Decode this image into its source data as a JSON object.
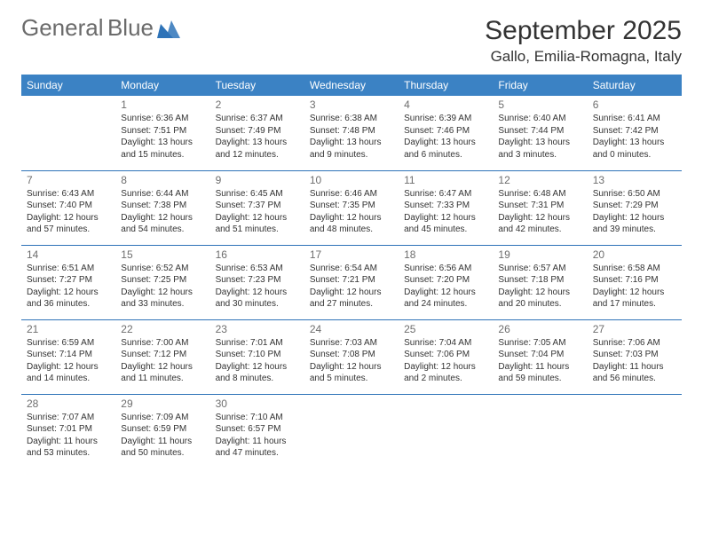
{
  "brand": {
    "name_top": "General",
    "name_bottom": "Blue",
    "logo_fill": "#2e73b8"
  },
  "header": {
    "month_title": "September 2025",
    "location": "Gallo, Emilia-Romagna, Italy"
  },
  "style": {
    "header_bg": "#3b82c4",
    "header_text": "#ffffff",
    "cell_border": "#2e73b8",
    "daynum_color": "#6e6e6e",
    "body_text": "#333333",
    "title_fontsize_pt": 30,
    "location_fontsize_pt": 17,
    "dayhead_fontsize_pt": 12,
    "cell_fontsize_pt": 10
  },
  "day_headers": [
    "Sunday",
    "Monday",
    "Tuesday",
    "Wednesday",
    "Thursday",
    "Friday",
    "Saturday"
  ],
  "weeks": [
    [
      null,
      {
        "n": "1",
        "sunrise": "6:36 AM",
        "sunset": "7:51 PM",
        "daylight": "13 hours and 15 minutes."
      },
      {
        "n": "2",
        "sunrise": "6:37 AM",
        "sunset": "7:49 PM",
        "daylight": "13 hours and 12 minutes."
      },
      {
        "n": "3",
        "sunrise": "6:38 AM",
        "sunset": "7:48 PM",
        "daylight": "13 hours and 9 minutes."
      },
      {
        "n": "4",
        "sunrise": "6:39 AM",
        "sunset": "7:46 PM",
        "daylight": "13 hours and 6 minutes."
      },
      {
        "n": "5",
        "sunrise": "6:40 AM",
        "sunset": "7:44 PM",
        "daylight": "13 hours and 3 minutes."
      },
      {
        "n": "6",
        "sunrise": "6:41 AM",
        "sunset": "7:42 PM",
        "daylight": "13 hours and 0 minutes."
      }
    ],
    [
      {
        "n": "7",
        "sunrise": "6:43 AM",
        "sunset": "7:40 PM",
        "daylight": "12 hours and 57 minutes."
      },
      {
        "n": "8",
        "sunrise": "6:44 AM",
        "sunset": "7:38 PM",
        "daylight": "12 hours and 54 minutes."
      },
      {
        "n": "9",
        "sunrise": "6:45 AM",
        "sunset": "7:37 PM",
        "daylight": "12 hours and 51 minutes."
      },
      {
        "n": "10",
        "sunrise": "6:46 AM",
        "sunset": "7:35 PM",
        "daylight": "12 hours and 48 minutes."
      },
      {
        "n": "11",
        "sunrise": "6:47 AM",
        "sunset": "7:33 PM",
        "daylight": "12 hours and 45 minutes."
      },
      {
        "n": "12",
        "sunrise": "6:48 AM",
        "sunset": "7:31 PM",
        "daylight": "12 hours and 42 minutes."
      },
      {
        "n": "13",
        "sunrise": "6:50 AM",
        "sunset": "7:29 PM",
        "daylight": "12 hours and 39 minutes."
      }
    ],
    [
      {
        "n": "14",
        "sunrise": "6:51 AM",
        "sunset": "7:27 PM",
        "daylight": "12 hours and 36 minutes."
      },
      {
        "n": "15",
        "sunrise": "6:52 AM",
        "sunset": "7:25 PM",
        "daylight": "12 hours and 33 minutes."
      },
      {
        "n": "16",
        "sunrise": "6:53 AM",
        "sunset": "7:23 PM",
        "daylight": "12 hours and 30 minutes."
      },
      {
        "n": "17",
        "sunrise": "6:54 AM",
        "sunset": "7:21 PM",
        "daylight": "12 hours and 27 minutes."
      },
      {
        "n": "18",
        "sunrise": "6:56 AM",
        "sunset": "7:20 PM",
        "daylight": "12 hours and 24 minutes."
      },
      {
        "n": "19",
        "sunrise": "6:57 AM",
        "sunset": "7:18 PM",
        "daylight": "12 hours and 20 minutes."
      },
      {
        "n": "20",
        "sunrise": "6:58 AM",
        "sunset": "7:16 PM",
        "daylight": "12 hours and 17 minutes."
      }
    ],
    [
      {
        "n": "21",
        "sunrise": "6:59 AM",
        "sunset": "7:14 PM",
        "daylight": "12 hours and 14 minutes."
      },
      {
        "n": "22",
        "sunrise": "7:00 AM",
        "sunset": "7:12 PM",
        "daylight": "12 hours and 11 minutes."
      },
      {
        "n": "23",
        "sunrise": "7:01 AM",
        "sunset": "7:10 PM",
        "daylight": "12 hours and 8 minutes."
      },
      {
        "n": "24",
        "sunrise": "7:03 AM",
        "sunset": "7:08 PM",
        "daylight": "12 hours and 5 minutes."
      },
      {
        "n": "25",
        "sunrise": "7:04 AM",
        "sunset": "7:06 PM",
        "daylight": "12 hours and 2 minutes."
      },
      {
        "n": "26",
        "sunrise": "7:05 AM",
        "sunset": "7:04 PM",
        "daylight": "11 hours and 59 minutes."
      },
      {
        "n": "27",
        "sunrise": "7:06 AM",
        "sunset": "7:03 PM",
        "daylight": "11 hours and 56 minutes."
      }
    ],
    [
      {
        "n": "28",
        "sunrise": "7:07 AM",
        "sunset": "7:01 PM",
        "daylight": "11 hours and 53 minutes."
      },
      {
        "n": "29",
        "sunrise": "7:09 AM",
        "sunset": "6:59 PM",
        "daylight": "11 hours and 50 minutes."
      },
      {
        "n": "30",
        "sunrise": "7:10 AM",
        "sunset": "6:57 PM",
        "daylight": "11 hours and 47 minutes."
      },
      null,
      null,
      null,
      null
    ]
  ],
  "labels": {
    "sunrise_prefix": "Sunrise: ",
    "sunset_prefix": "Sunset: ",
    "daylight_prefix": "Daylight: "
  }
}
